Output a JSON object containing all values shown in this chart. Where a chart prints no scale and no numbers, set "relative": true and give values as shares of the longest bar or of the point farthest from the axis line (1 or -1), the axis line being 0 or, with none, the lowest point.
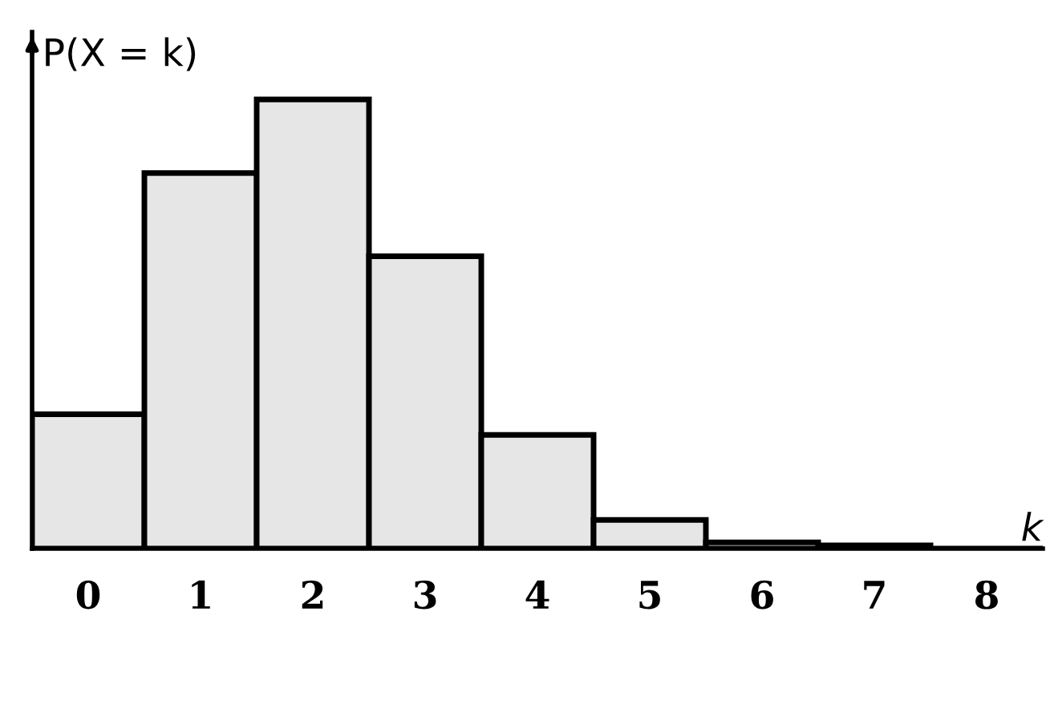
{
  "chart_data": {
    "type": "bar",
    "relative": true,
    "xlabel": "k",
    "ylabel": "P(X = k)",
    "categories": [
      "0",
      "1",
      "2",
      "3",
      "4",
      "5",
      "6",
      "7",
      "8"
    ],
    "values": [
      0.299,
      0.836,
      1,
      0.651,
      0.253,
      0.064,
      0.014,
      0.007,
      null
    ],
    "color": "#e6e6e6",
    "grid": false,
    "legend": false
  }
}
